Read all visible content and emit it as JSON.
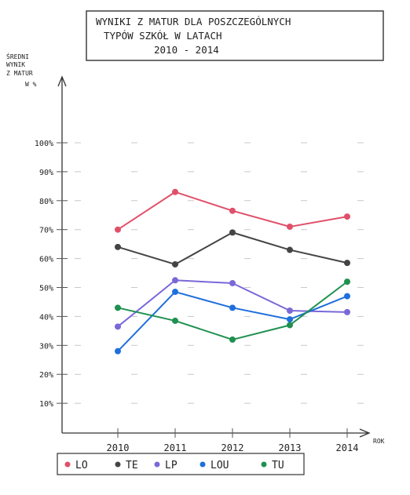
{
  "chart_data": {
    "type": "line",
    "title_lines": [
      "WYNIKI Z MATUR DLA POSZCZEGÓLNYCH",
      "TYPÓW SZKÓŁ W LATACH",
      "2010 - 2014"
    ],
    "ylabel_lines": [
      "ŚREDNI",
      "WYNIK",
      "Z MATUR",
      "W %"
    ],
    "xlabel": "ROK",
    "categories": [
      "2010",
      "2011",
      "2012",
      "2013",
      "2014"
    ],
    "yticks": [
      "10%",
      "20%",
      "30%",
      "40%",
      "50%",
      "60%",
      "70%",
      "80%",
      "90%",
      "100%"
    ],
    "ylim": [
      0,
      100
    ],
    "grid": true,
    "legend_position": "bottom",
    "series": [
      {
        "name": "LO",
        "color": "#e0506a",
        "values": [
          70,
          83,
          76.5,
          71,
          74.5
        ]
      },
      {
        "name": "TE",
        "color": "#444444",
        "values": [
          64,
          58,
          69,
          63,
          58.5
        ]
      },
      {
        "name": "LP",
        "color": "#7a68d8",
        "values": [
          36.5,
          52.5,
          51.5,
          42,
          41.5
        ]
      },
      {
        "name": "LOU",
        "color": "#1f6fdc",
        "values": [
          28,
          48.5,
          43,
          39,
          47
        ]
      },
      {
        "name": "TU",
        "color": "#1f9050",
        "values": [
          43,
          38.5,
          32,
          37,
          52
        ]
      }
    ]
  }
}
